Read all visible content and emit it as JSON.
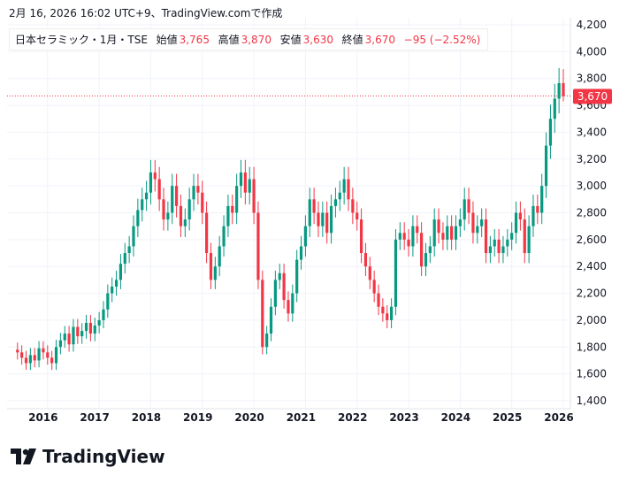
{
  "caption": "2月 16, 2026 16:02 UTC+9、TradingView.comで作成",
  "legend": {
    "symbol": "日本セラミック・1月・TSE",
    "open_label": "始値",
    "open": "3,765",
    "high_label": "高値",
    "high": "3,870",
    "low_label": "安値",
    "low": "3,630",
    "close_label": "終値",
    "close": "3,670",
    "change": "−95 (−2.52%)"
  },
  "logo": "TradingView",
  "colors": {
    "up": "#089981",
    "down": "#f23645",
    "grid": "#f0f3fa"
  },
  "chart_data": {
    "type": "candlestick",
    "interval": "1 month",
    "start": "2015-06",
    "ylim": [
      1400,
      4200
    ],
    "yticks": [
      1400,
      1600,
      1800,
      2000,
      2200,
      2400,
      2600,
      2800,
      3000,
      3200,
      3400,
      3600,
      3800,
      4000,
      4200
    ],
    "xticks": [
      "2016",
      "2017",
      "2018",
      "2019",
      "2020",
      "2021",
      "2022",
      "2023",
      "2024",
      "2025",
      "2026"
    ],
    "last_price_label": "3,670",
    "first_open": 1780,
    "close": [
      1760,
      1720,
      1680,
      1740,
      1700,
      1790,
      1760,
      1720,
      1680,
      1800,
      1850,
      1900,
      1820,
      1950,
      1880,
      1920,
      1980,
      1900,
      1960,
      2000,
      2080,
      2200,
      2250,
      2300,
      2420,
      2500,
      2550,
      2700,
      2820,
      2900,
      2950,
      3100,
      3050,
      2900,
      2750,
      2800,
      3000,
      2850,
      2700,
      2750,
      2900,
      3000,
      2950,
      2800,
      2500,
      2300,
      2400,
      2550,
      2700,
      2850,
      2800,
      3000,
      3100,
      2950,
      3050,
      2800,
      2300,
      1800,
      1900,
      2100,
      2300,
      2350,
      2150,
      2050,
      2200,
      2450,
      2550,
      2700,
      2900,
      2800,
      2700,
      2800,
      2650,
      2850,
      2900,
      2950,
      3050,
      2900,
      2800,
      2750,
      2500,
      2400,
      2300,
      2200,
      2100,
      2050,
      2000,
      2100,
      2600,
      2650,
      2600,
      2550,
      2700,
      2650,
      2400,
      2500,
      2550,
      2750,
      2650,
      2600,
      2700,
      2600,
      2700,
      2750,
      2900,
      2800,
      2650,
      2700,
      2750,
      2500,
      2550,
      2600,
      2500,
      2550,
      2600,
      2650,
      2800,
      2750,
      2500,
      2700,
      2850,
      2800,
      3000,
      3300,
      3500,
      3650,
      3765,
      3670
    ],
    "last_candle": {
      "open": 3765,
      "high": 3870,
      "low": 3630,
      "close": 3670
    }
  }
}
